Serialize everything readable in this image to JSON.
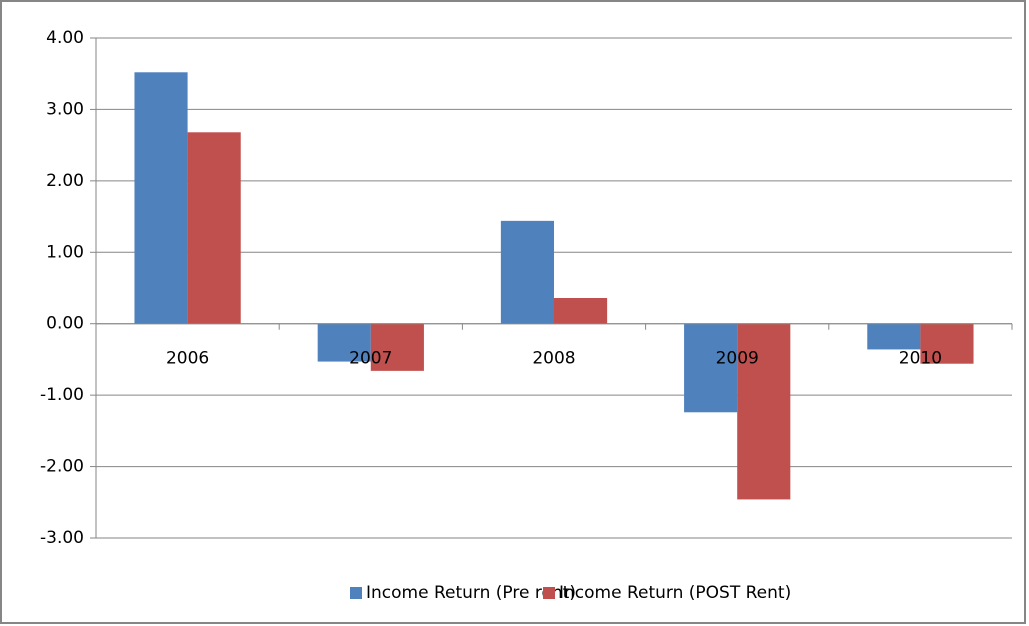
{
  "chart_data": {
    "type": "bar",
    "categories": [
      "2006",
      "2007",
      "2008",
      "2009",
      "2010"
    ],
    "series": [
      {
        "name": "Income Return (Pre rent)",
        "color": "#4f81bd",
        "values": [
          3.52,
          -0.53,
          1.44,
          -1.24,
          -0.36
        ]
      },
      {
        "name": "Income Return (POST Rent)",
        "color": "#c0504d",
        "values": [
          2.68,
          -0.66,
          0.36,
          -2.46,
          -0.56
        ]
      }
    ],
    "ylim": [
      -3,
      4
    ],
    "yticks": [
      {
        "value": -3,
        "label": "-3.00"
      },
      {
        "value": -2,
        "label": "-2.00"
      },
      {
        "value": -1,
        "label": "-1.00"
      },
      {
        "value": 0,
        "label": "0.00"
      },
      {
        "value": 1,
        "label": "1.00"
      },
      {
        "value": 2,
        "label": "2.00"
      },
      {
        "value": 3,
        "label": "3.00"
      },
      {
        "value": 4,
        "label": "4.00"
      }
    ],
    "grid": true,
    "legend": "bottom"
  }
}
